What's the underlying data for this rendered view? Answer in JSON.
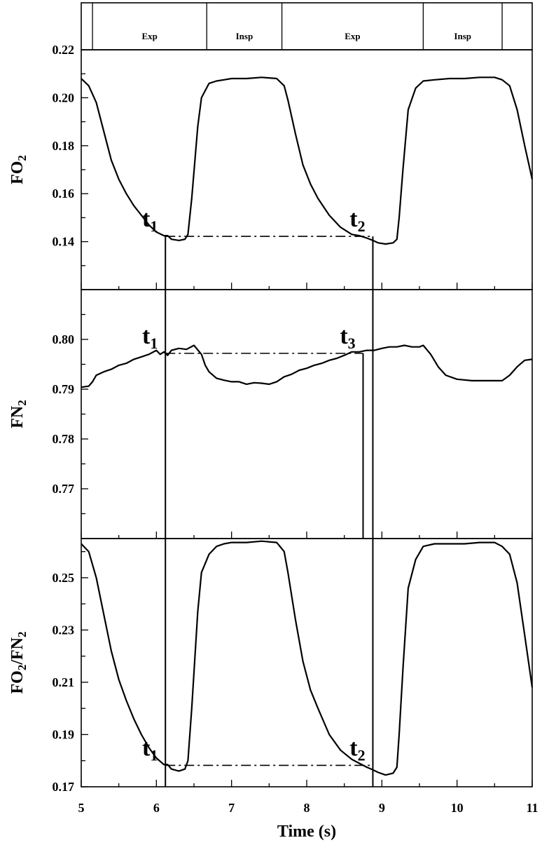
{
  "chart_data": {
    "type": "line",
    "xlabel": "Time (s)",
    "xlim": [
      5,
      11
    ],
    "xticks": [
      5,
      6,
      7,
      8,
      9,
      10,
      11
    ],
    "phases": [
      {
        "label": "",
        "start": 5.0,
        "end": 5.15
      },
      {
        "label": "Exp",
        "start": 5.15,
        "end": 6.67
      },
      {
        "label": "Insp",
        "start": 6.67,
        "end": 7.67
      },
      {
        "label": "Exp",
        "start": 7.67,
        "end": 9.55
      },
      {
        "label": "Insp",
        "start": 9.55,
        "end": 10.6
      },
      {
        "label": "",
        "start": 10.6,
        "end": 11.0
      }
    ],
    "panels": [
      {
        "id": "fo2",
        "ylabel": "FO",
        "ylabel_sub": "2",
        "ylim": [
          0.12,
          0.22
        ],
        "yticks": [
          "0.14",
          "0.16",
          "0.18",
          "0.20",
          "0.22"
        ],
        "series": [
          {
            "x": [
              5.0,
              5.1,
              5.2,
              5.3,
              5.4,
              5.5,
              5.6,
              5.7,
              5.8,
              5.9,
              6.0,
              6.1,
              6.15,
              6.2,
              6.3,
              6.38,
              6.42,
              6.47,
              6.55,
              6.6,
              6.7,
              6.8,
              6.9,
              7.0,
              7.2,
              7.4,
              7.6,
              7.7,
              7.75,
              7.85,
              7.95,
              8.05,
              8.15,
              8.3,
              8.45,
              8.6,
              8.7,
              8.8,
              8.88,
              8.95,
              9.05,
              9.15,
              9.2,
              9.23,
              9.28,
              9.35,
              9.45,
              9.55,
              9.7,
              9.9,
              10.1,
              10.3,
              10.5,
              10.6,
              10.7,
              10.8,
              10.9,
              11.0
            ],
            "y": [
              0.208,
              0.205,
              0.198,
              0.186,
              0.174,
              0.166,
              0.16,
              0.155,
              0.151,
              0.147,
              0.144,
              0.1425,
              0.1425,
              0.141,
              0.1405,
              0.141,
              0.143,
              0.158,
              0.188,
              0.2,
              0.206,
              0.207,
              0.2075,
              0.208,
              0.208,
              0.2085,
              0.208,
              0.205,
              0.199,
              0.185,
              0.172,
              0.164,
              0.158,
              0.151,
              0.146,
              0.143,
              0.1425,
              0.1415,
              0.1405,
              0.1395,
              0.139,
              0.1395,
              0.141,
              0.15,
              0.17,
              0.195,
              0.204,
              0.207,
              0.2075,
              0.208,
              0.208,
              0.2085,
              0.2085,
              0.2075,
              0.205,
              0.195,
              0.18,
              0.166
            ]
          }
        ],
        "reference_level": 0.1422,
        "markers": [
          {
            "label": "t",
            "sub": "1",
            "x": 6.12
          },
          {
            "label": "t",
            "sub": "2",
            "x": 8.88
          }
        ]
      },
      {
        "id": "fn2",
        "ylabel": "FN",
        "ylabel_sub": "2",
        "ylim": [
          0.76,
          0.81
        ],
        "yticks": [
          "0.77",
          "0.78",
          "0.79",
          "0.80"
        ],
        "series": [
          {
            "x": [
              5.0,
              5.1,
              5.15,
              5.2,
              5.3,
              5.4,
              5.5,
              5.6,
              5.7,
              5.8,
              5.9,
              6.0,
              6.05,
              6.1,
              6.15,
              6.2,
              6.3,
              6.4,
              6.5,
              6.6,
              6.65,
              6.7,
              6.8,
              6.9,
              7.0,
              7.1,
              7.2,
              7.3,
              7.4,
              7.5,
              7.6,
              7.7,
              7.8,
              7.9,
              8.0,
              8.1,
              8.2,
              8.3,
              8.4,
              8.5,
              8.6,
              8.7,
              8.8,
              8.9,
              9.0,
              9.1,
              9.2,
              9.3,
              9.4,
              9.5,
              9.55,
              9.65,
              9.75,
              9.85,
              10.0,
              10.2,
              10.4,
              10.6,
              10.7,
              10.8,
              10.9,
              11.0
            ],
            "y": [
              0.7904,
              0.7906,
              0.7915,
              0.7928,
              0.7935,
              0.794,
              0.7948,
              0.7952,
              0.796,
              0.7965,
              0.797,
              0.7978,
              0.797,
              0.7975,
              0.7968,
              0.7978,
              0.7982,
              0.798,
              0.7988,
              0.797,
              0.7948,
              0.7935,
              0.7922,
              0.7918,
              0.7915,
              0.7915,
              0.791,
              0.7913,
              0.7912,
              0.791,
              0.7915,
              0.7925,
              0.793,
              0.7938,
              0.7942,
              0.7948,
              0.7952,
              0.7958,
              0.7962,
              0.7968,
              0.7975,
              0.7975,
              0.7978,
              0.7978,
              0.7982,
              0.7985,
              0.7985,
              0.7988,
              0.7985,
              0.7985,
              0.7988,
              0.797,
              0.7945,
              0.7928,
              0.792,
              0.7917,
              0.7917,
              0.7917,
              0.7928,
              0.7945,
              0.7958,
              0.796
            ]
          }
        ],
        "reference_level": 0.7972,
        "markers": [
          {
            "label": "t",
            "sub": "1",
            "x": 6.12
          },
          {
            "label": "t",
            "sub": "3",
            "x": 8.75
          }
        ]
      },
      {
        "id": "ratio",
        "ylabel": "FO",
        "ylabel_sub": "2",
        "ylabel_mid": "/FN",
        "ylabel_sub2": "2",
        "ylim": [
          0.17,
          0.265
        ],
        "yticks": [
          "0.17",
          "0.19",
          "0.21",
          "0.23",
          "0.25"
        ],
        "series": [
          {
            "x": [
              5.0,
              5.1,
              5.2,
              5.3,
              5.4,
              5.5,
              5.6,
              5.7,
              5.8,
              5.9,
              6.0,
              6.1,
              6.15,
              6.2,
              6.3,
              6.38,
              6.42,
              6.47,
              6.55,
              6.6,
              6.7,
              6.8,
              6.9,
              7.0,
              7.2,
              7.4,
              7.6,
              7.7,
              7.75,
              7.85,
              7.95,
              8.05,
              8.15,
              8.3,
              8.45,
              8.6,
              8.7,
              8.8,
              8.88,
              8.95,
              9.05,
              9.15,
              9.2,
              9.23,
              9.28,
              9.35,
              9.45,
              9.55,
              9.7,
              9.9,
              10.1,
              10.3,
              10.5,
              10.6,
              10.7,
              10.8,
              10.9,
              11.0
            ],
            "y": [
              0.263,
              0.26,
              0.25,
              0.236,
              0.222,
              0.211,
              0.203,
              0.196,
              0.19,
              0.185,
              0.181,
              0.1785,
              0.1785,
              0.1768,
              0.176,
              0.1768,
              0.18,
              0.2,
              0.237,
              0.252,
              0.259,
              0.262,
              0.263,
              0.2635,
              0.2635,
              0.264,
              0.2635,
              0.26,
              0.252,
              0.234,
              0.218,
              0.207,
              0.2,
              0.19,
              0.184,
              0.1805,
              0.179,
              0.1775,
              0.1765,
              0.1755,
              0.1745,
              0.1752,
              0.1775,
              0.19,
              0.215,
              0.246,
              0.257,
              0.262,
              0.263,
              0.263,
              0.263,
              0.2635,
              0.2635,
              0.262,
              0.259,
              0.248,
              0.228,
              0.208
            ]
          }
        ],
        "reference_level": 0.1782,
        "markers": [
          {
            "label": "t",
            "sub": "1",
            "x": 6.12
          },
          {
            "label": "t",
            "sub": "2",
            "x": 8.88
          }
        ]
      }
    ]
  }
}
